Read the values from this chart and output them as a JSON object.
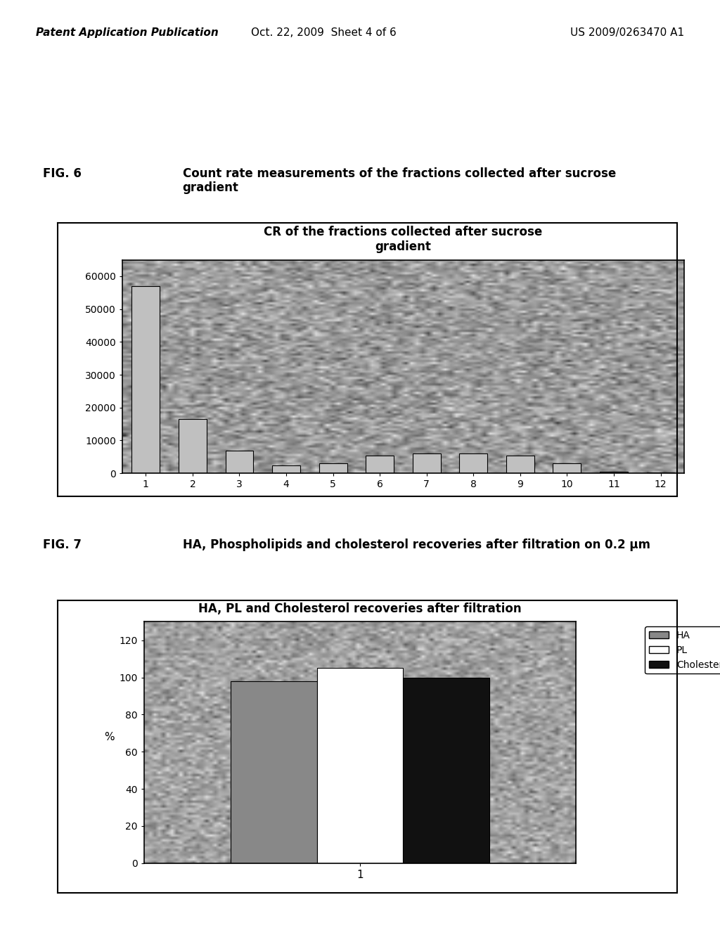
{
  "fig6_title": "CR of the fractions collected after sucrose\ngradient",
  "fig6_categories": [
    1,
    2,
    3,
    4,
    5,
    6,
    7,
    8,
    9,
    10,
    11,
    12
  ],
  "fig6_values": [
    57000,
    16500,
    7000,
    2500,
    3000,
    5500,
    6000,
    6000,
    5500,
    3000,
    500,
    200
  ],
  "fig6_ylim": [
    0,
    65000
  ],
  "fig6_yticks": [
    0,
    10000,
    20000,
    30000,
    40000,
    50000,
    60000
  ],
  "fig6_bar_color": "#c0c0c0",
  "fig6_bar_edge": "#000000",
  "fig6_bg_color": "#a0a0a0",
  "fig6_plot_bg": "#b0b0b0",
  "fig6_caption_label": "FIG. 6",
  "fig6_caption_text": "Count rate measurements of the fractions collected after sucrose\ngradient",
  "fig7_title": "HA, PL and Cholesterol recoveries after filtration",
  "fig7_categories": [
    1
  ],
  "fig7_ha_values": [
    98
  ],
  "fig7_pl_values": [
    105
  ],
  "fig7_chol_values": [
    100
  ],
  "fig7_ylim": [
    0,
    130
  ],
  "fig7_yticks": [
    0,
    20,
    40,
    60,
    80,
    100,
    120
  ],
  "fig7_ylabel": "%",
  "fig7_xlabel": "1",
  "fig7_ha_color": "#888888",
  "fig7_pl_color": "#ffffff",
  "fig7_chol_color": "#111111",
  "fig7_bg_color": "#b0b0b0",
  "fig7_caption_label": "FIG. 7",
  "fig7_caption_text": "HA, Phospholipids and cholesterol recoveries after filtration on 0.2 μm",
  "page_bg": "#ffffff",
  "header_left": "Patent Application Publication",
  "header_center": "Oct. 22, 2009  Sheet 4 of 6",
  "header_right": "US 2009/0263470 A1"
}
